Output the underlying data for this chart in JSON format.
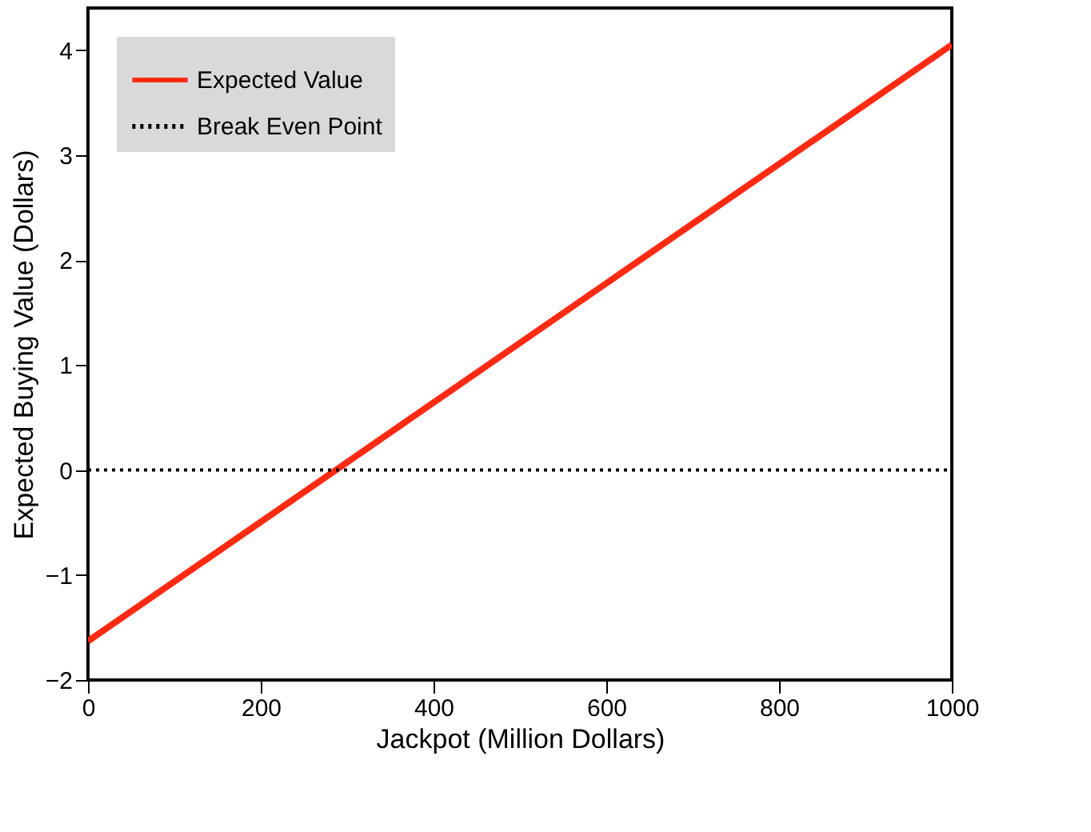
{
  "chart_data": {
    "type": "line",
    "xlabel": "Jackpot (Million Dollars)",
    "ylabel": "Expected Buying Value (Dollars)",
    "xlim": [
      0,
      1000
    ],
    "xticks": [
      0,
      200,
      400,
      600,
      800,
      1000
    ],
    "ylim": [
      -2,
      4.4
    ],
    "yticks": [
      -2,
      -1,
      0,
      1,
      2,
      3,
      4
    ],
    "legend": "top left",
    "grid": false,
    "x": [
      0,
      1000
    ],
    "series": [
      {
        "name": "Expected Value",
        "color": "#ff2a12",
        "values": [
          -1.63,
          4.05
        ],
        "line_style": "solid"
      },
      {
        "name": "Break Even Point",
        "color": "#000000",
        "values": [
          0,
          0
        ],
        "line_style": "dotted"
      }
    ]
  }
}
